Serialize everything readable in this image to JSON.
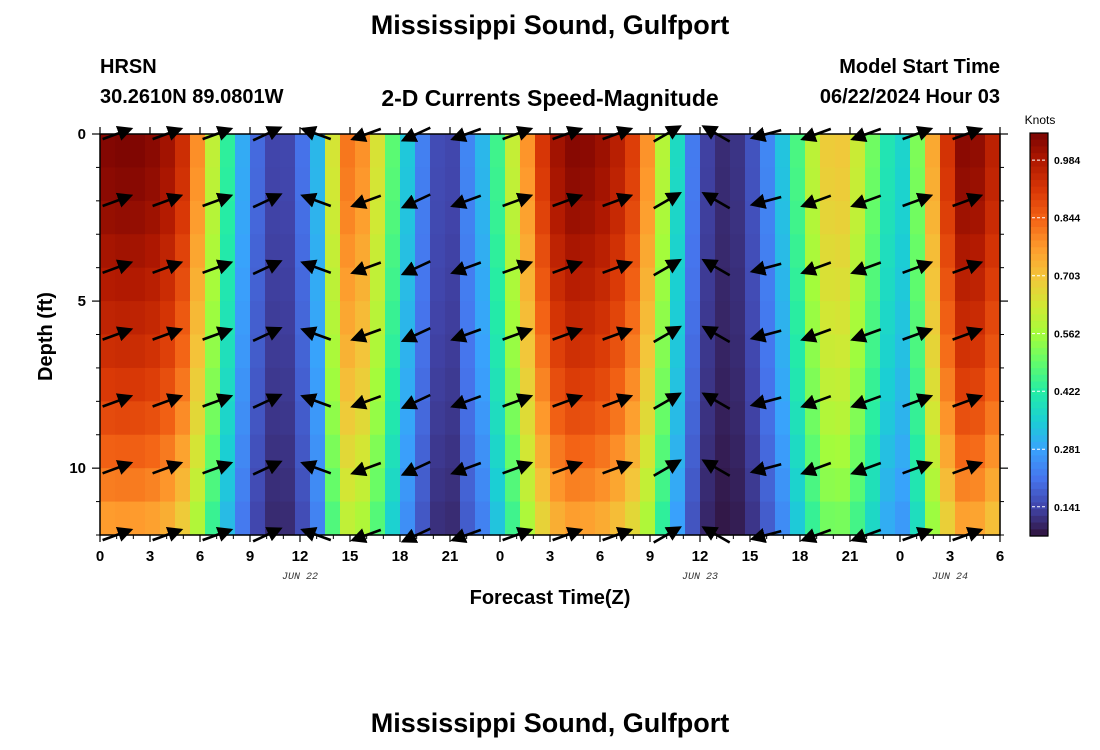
{
  "header": {
    "title": "Mississippi Sound, Gulfport",
    "station_id": "HRSN",
    "station_coords": "30.2610N  89.0801W",
    "subtitle": "2-D Currents Speed-Magnitude",
    "model_start_label": "Model Start Time",
    "model_start_value": "06/22/2024 Hour 03"
  },
  "footer": {
    "title": "Mississippi Sound, Gulfport"
  },
  "chart_data": {
    "type": "heatmap",
    "title": "2-D Currents Speed-Magnitude",
    "xlabel": "Forecast Time(Z)",
    "ylabel": "Depth (ft)",
    "x_tick_labels": [
      "0",
      "3",
      "6",
      "9",
      "12",
      "15",
      "18",
      "21",
      "0",
      "3",
      "6",
      "9",
      "12",
      "15",
      "18",
      "21",
      "0",
      "3",
      "6"
    ],
    "x_range_hours": [
      0,
      54
    ],
    "x_tick_step_hours": 3,
    "date_labels": [
      {
        "text": "JUN 22",
        "hour": 12
      },
      {
        "text": "JUN 23",
        "hour": 36
      },
      {
        "text": "JUN 24",
        "hour": 51
      }
    ],
    "y_tick_labels": [
      "0",
      "5",
      "10"
    ],
    "y_range_ft": [
      0,
      12
    ],
    "y_reversed": true,
    "colorbar": {
      "title": "Knots",
      "min": 0.07,
      "max": 1.05,
      "tick_values": [
        0.984,
        0.844,
        0.703,
        0.562,
        0.422,
        0.281,
        0.141
      ],
      "tick_labels": [
        "0.984",
        "0.844",
        "0.703",
        "0.562",
        "0.422",
        "0.281",
        "0.141"
      ],
      "colormap": [
        "#30123b",
        "#4145ab",
        "#4675ed",
        "#39a2fc",
        "#1bcfd4",
        "#24eca6",
        "#61fc6c",
        "#a4fc3b",
        "#d1e834",
        "#f3c63a",
        "#fe9b2d",
        "#f36315",
        "#d93806",
        "#b11901",
        "#7a0402"
      ]
    },
    "speed_hourly_knots": [
      0.98,
      0.99,
      0.99,
      0.98,
      0.95,
      0.88,
      0.72,
      0.52,
      0.35,
      0.22,
      0.14,
      0.12,
      0.18,
      0.28,
      0.62,
      0.8,
      0.72,
      0.55,
      0.38,
      0.25,
      0.15,
      0.12,
      0.22,
      0.3,
      0.45,
      0.62,
      0.8,
      0.92,
      0.98,
      0.98,
      0.96,
      0.92,
      0.85,
      0.72,
      0.5,
      0.28,
      0.15,
      0.1,
      0.1,
      0.14,
      0.22,
      0.32,
      0.46,
      0.6,
      0.68,
      0.64,
      0.52,
      0.4,
      0.32,
      0.48,
      0.72,
      0.9,
      1.0,
      0.95,
      0.88
    ],
    "depth_factors_ft": [
      {
        "depth": 0,
        "factor": 1.06
      },
      {
        "depth": 2,
        "factor": 1.04
      },
      {
        "depth": 4,
        "factor": 1.0
      },
      {
        "depth": 6,
        "factor": 0.96
      },
      {
        "depth": 8,
        "factor": 0.91
      },
      {
        "depth": 10,
        "factor": 0.84
      },
      {
        "depth": 12,
        "factor": 0.76
      }
    ],
    "vectors": {
      "depths_ft": [
        0,
        2,
        4,
        6,
        8,
        10,
        12
      ],
      "hours": [
        1,
        4,
        7,
        10,
        13,
        16,
        19,
        22,
        25,
        28,
        31,
        34,
        37,
        40,
        43,
        46,
        49,
        52
      ],
      "direction_deg": [
        20,
        20,
        20,
        25,
        160,
        200,
        205,
        200,
        20,
        20,
        20,
        30,
        150,
        195,
        200,
        200,
        20,
        20
      ]
    }
  }
}
